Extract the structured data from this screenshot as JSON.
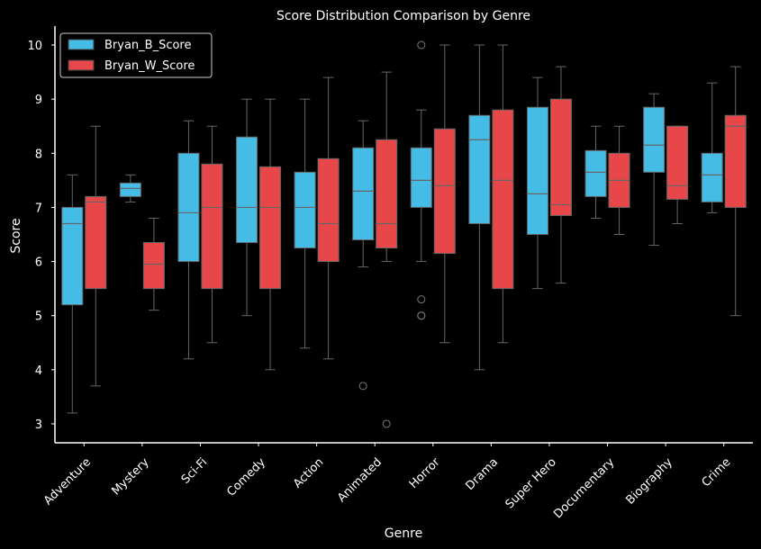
{
  "chart_data": {
    "type": "box",
    "title": "Score Distribution Comparison by Genre",
    "xlabel": "Genre",
    "ylabel": "Score",
    "ylim": [
      2.65,
      10.35
    ],
    "yticks": [
      3,
      4,
      5,
      6,
      7,
      8,
      9,
      10
    ],
    "categories": [
      "Adventure",
      "Mystery",
      "Sci-Fi",
      "Comedy",
      "Action",
      "Animated",
      "Horror",
      "Drama",
      "Super Hero",
      "Documentary",
      "Biography",
      "Crime"
    ],
    "legend_position": "top-left",
    "background": "#000000",
    "series": [
      {
        "name": "Bryan_B_Score",
        "color": "#45BCE5",
        "boxes": [
          {
            "whislo": 3.2,
            "q1": 5.2,
            "med": 6.7,
            "q3": 7.0,
            "whishi": 7.6,
            "fliers": []
          },
          {
            "whislo": 7.1,
            "q1": 7.2,
            "med": 7.35,
            "q3": 7.45,
            "whishi": 7.6,
            "fliers": []
          },
          {
            "whislo": 4.2,
            "q1": 6.0,
            "med": 6.9,
            "q3": 8.0,
            "whishi": 8.6,
            "fliers": []
          },
          {
            "whislo": 5.0,
            "q1": 6.35,
            "med": 7.0,
            "q3": 8.3,
            "whishi": 9.0,
            "fliers": []
          },
          {
            "whislo": 4.4,
            "q1": 6.25,
            "med": 7.0,
            "q3": 7.65,
            "whishi": 9.0,
            "fliers": []
          },
          {
            "whislo": 5.9,
            "q1": 6.4,
            "med": 7.3,
            "q3": 8.1,
            "whishi": 8.6,
            "fliers": [
              3.7
            ]
          },
          {
            "whislo": 6.0,
            "q1": 7.0,
            "med": 7.5,
            "q3": 8.1,
            "whishi": 8.8,
            "fliers": [
              10.0,
              5.3,
              5.0,
              5.0
            ]
          },
          {
            "whislo": 4.0,
            "q1": 6.7,
            "med": 8.25,
            "q3": 8.7,
            "whishi": 10.0,
            "fliers": []
          },
          {
            "whislo": 5.5,
            "q1": 6.5,
            "med": 7.25,
            "q3": 8.85,
            "whishi": 9.4,
            "fliers": []
          },
          {
            "whislo": 6.8,
            "q1": 7.2,
            "med": 7.65,
            "q3": 8.05,
            "whishi": 8.5,
            "fliers": []
          },
          {
            "whislo": 6.3,
            "q1": 7.65,
            "med": 8.15,
            "q3": 8.85,
            "whishi": 9.1,
            "fliers": []
          },
          {
            "whislo": 6.9,
            "q1": 7.1,
            "med": 7.6,
            "q3": 8.0,
            "whishi": 9.3,
            "fliers": []
          }
        ]
      },
      {
        "name": "Bryan_W_Score",
        "color": "#E8474A",
        "boxes": [
          {
            "whislo": 3.7,
            "q1": 5.5,
            "med": 7.1,
            "q3": 7.2,
            "whishi": 8.5,
            "fliers": []
          },
          {
            "whislo": 5.1,
            "q1": 5.5,
            "med": 5.95,
            "q3": 6.35,
            "whishi": 6.8,
            "fliers": []
          },
          {
            "whislo": 4.5,
            "q1": 5.5,
            "med": 7.0,
            "q3": 7.8,
            "whishi": 8.5,
            "fliers": []
          },
          {
            "whislo": 4.0,
            "q1": 5.5,
            "med": 7.0,
            "q3": 7.75,
            "whishi": 9.0,
            "fliers": []
          },
          {
            "whislo": 4.2,
            "q1": 6.0,
            "med": 6.7,
            "q3": 7.9,
            "whishi": 9.4,
            "fliers": []
          },
          {
            "whislo": 6.0,
            "q1": 6.25,
            "med": 6.7,
            "q3": 8.25,
            "whishi": 9.5,
            "fliers": [
              3.0
            ]
          },
          {
            "whislo": 4.5,
            "q1": 6.15,
            "med": 7.4,
            "q3": 8.45,
            "whishi": 10.0,
            "fliers": []
          },
          {
            "whislo": 4.5,
            "q1": 5.5,
            "med": 7.5,
            "q3": 8.8,
            "whishi": 10.0,
            "fliers": []
          },
          {
            "whislo": 5.6,
            "q1": 6.85,
            "med": 7.05,
            "q3": 9.0,
            "whishi": 9.6,
            "fliers": []
          },
          {
            "whislo": 6.5,
            "q1": 7.0,
            "med": 7.5,
            "q3": 8.0,
            "whishi": 8.5,
            "fliers": []
          },
          {
            "whislo": 6.7,
            "q1": 7.15,
            "med": 7.4,
            "q3": 8.5,
            "whishi": 8.5,
            "fliers": []
          },
          {
            "whislo": 5.0,
            "q1": 7.0,
            "med": 8.5,
            "q3": 8.7,
            "whishi": 9.6,
            "fliers": []
          }
        ]
      }
    ]
  }
}
